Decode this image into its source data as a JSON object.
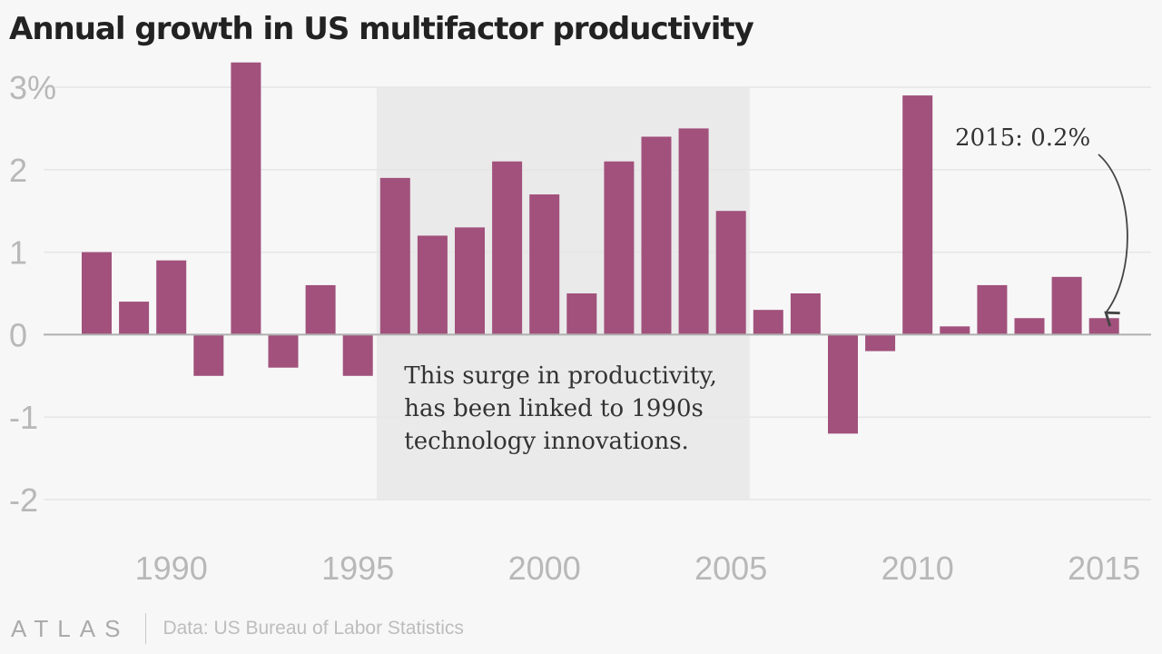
{
  "title": "Annual growth in US multifactor productivity",
  "footer": {
    "logo": "ATLAS",
    "source": "Data: US Bureau of Labor Statistics"
  },
  "colors": {
    "bar": "#a1517c",
    "highlight_band": "#eaeaea",
    "grid": "#e6e6e6",
    "zero_line": "#b0b0b0"
  },
  "chart_data": {
    "type": "bar",
    "title": "Annual growth in US multifactor productivity",
    "x": [
      1988,
      1989,
      1990,
      1991,
      1992,
      1993,
      1994,
      1995,
      1996,
      1997,
      1998,
      1999,
      2000,
      2001,
      2002,
      2003,
      2004,
      2005,
      2006,
      2007,
      2008,
      2009,
      2010,
      2011,
      2012,
      2013,
      2014,
      2015
    ],
    "values": [
      1.0,
      0.4,
      0.9,
      -0.5,
      3.3,
      -0.4,
      0.6,
      -0.5,
      1.9,
      1.2,
      1.3,
      2.1,
      1.7,
      0.5,
      2.1,
      2.4,
      2.5,
      1.5,
      0.3,
      0.5,
      -1.2,
      -0.2,
      2.9,
      0.1,
      0.6,
      0.2,
      0.7,
      0.2
    ],
    "ylim": [
      -2,
      3
    ],
    "yticks": [
      {
        "value": 3,
        "label": "3%"
      },
      {
        "value": 2,
        "label": "2"
      },
      {
        "value": 1,
        "label": "1"
      },
      {
        "value": 0,
        "label": "0"
      },
      {
        "value": -1,
        "label": "-1"
      },
      {
        "value": -2,
        "label": "-2"
      }
    ],
    "xticks": [
      {
        "value": 1990,
        "label": "1990"
      },
      {
        "value": 1995,
        "label": "1995"
      },
      {
        "value": 2000,
        "label": "2000"
      },
      {
        "value": 2005,
        "label": "2005"
      },
      {
        "value": 2010,
        "label": "2010"
      },
      {
        "value": 2015,
        "label": "2015"
      }
    ],
    "grid": true,
    "highlight_range": [
      1996,
      2005
    ],
    "annotations": [
      {
        "lines": [
          "This surge in productivity,",
          "has been linked to 1990s",
          "technology innovations."
        ]
      },
      {
        "text": "2015: 0.2%",
        "year": 2015
      }
    ]
  }
}
